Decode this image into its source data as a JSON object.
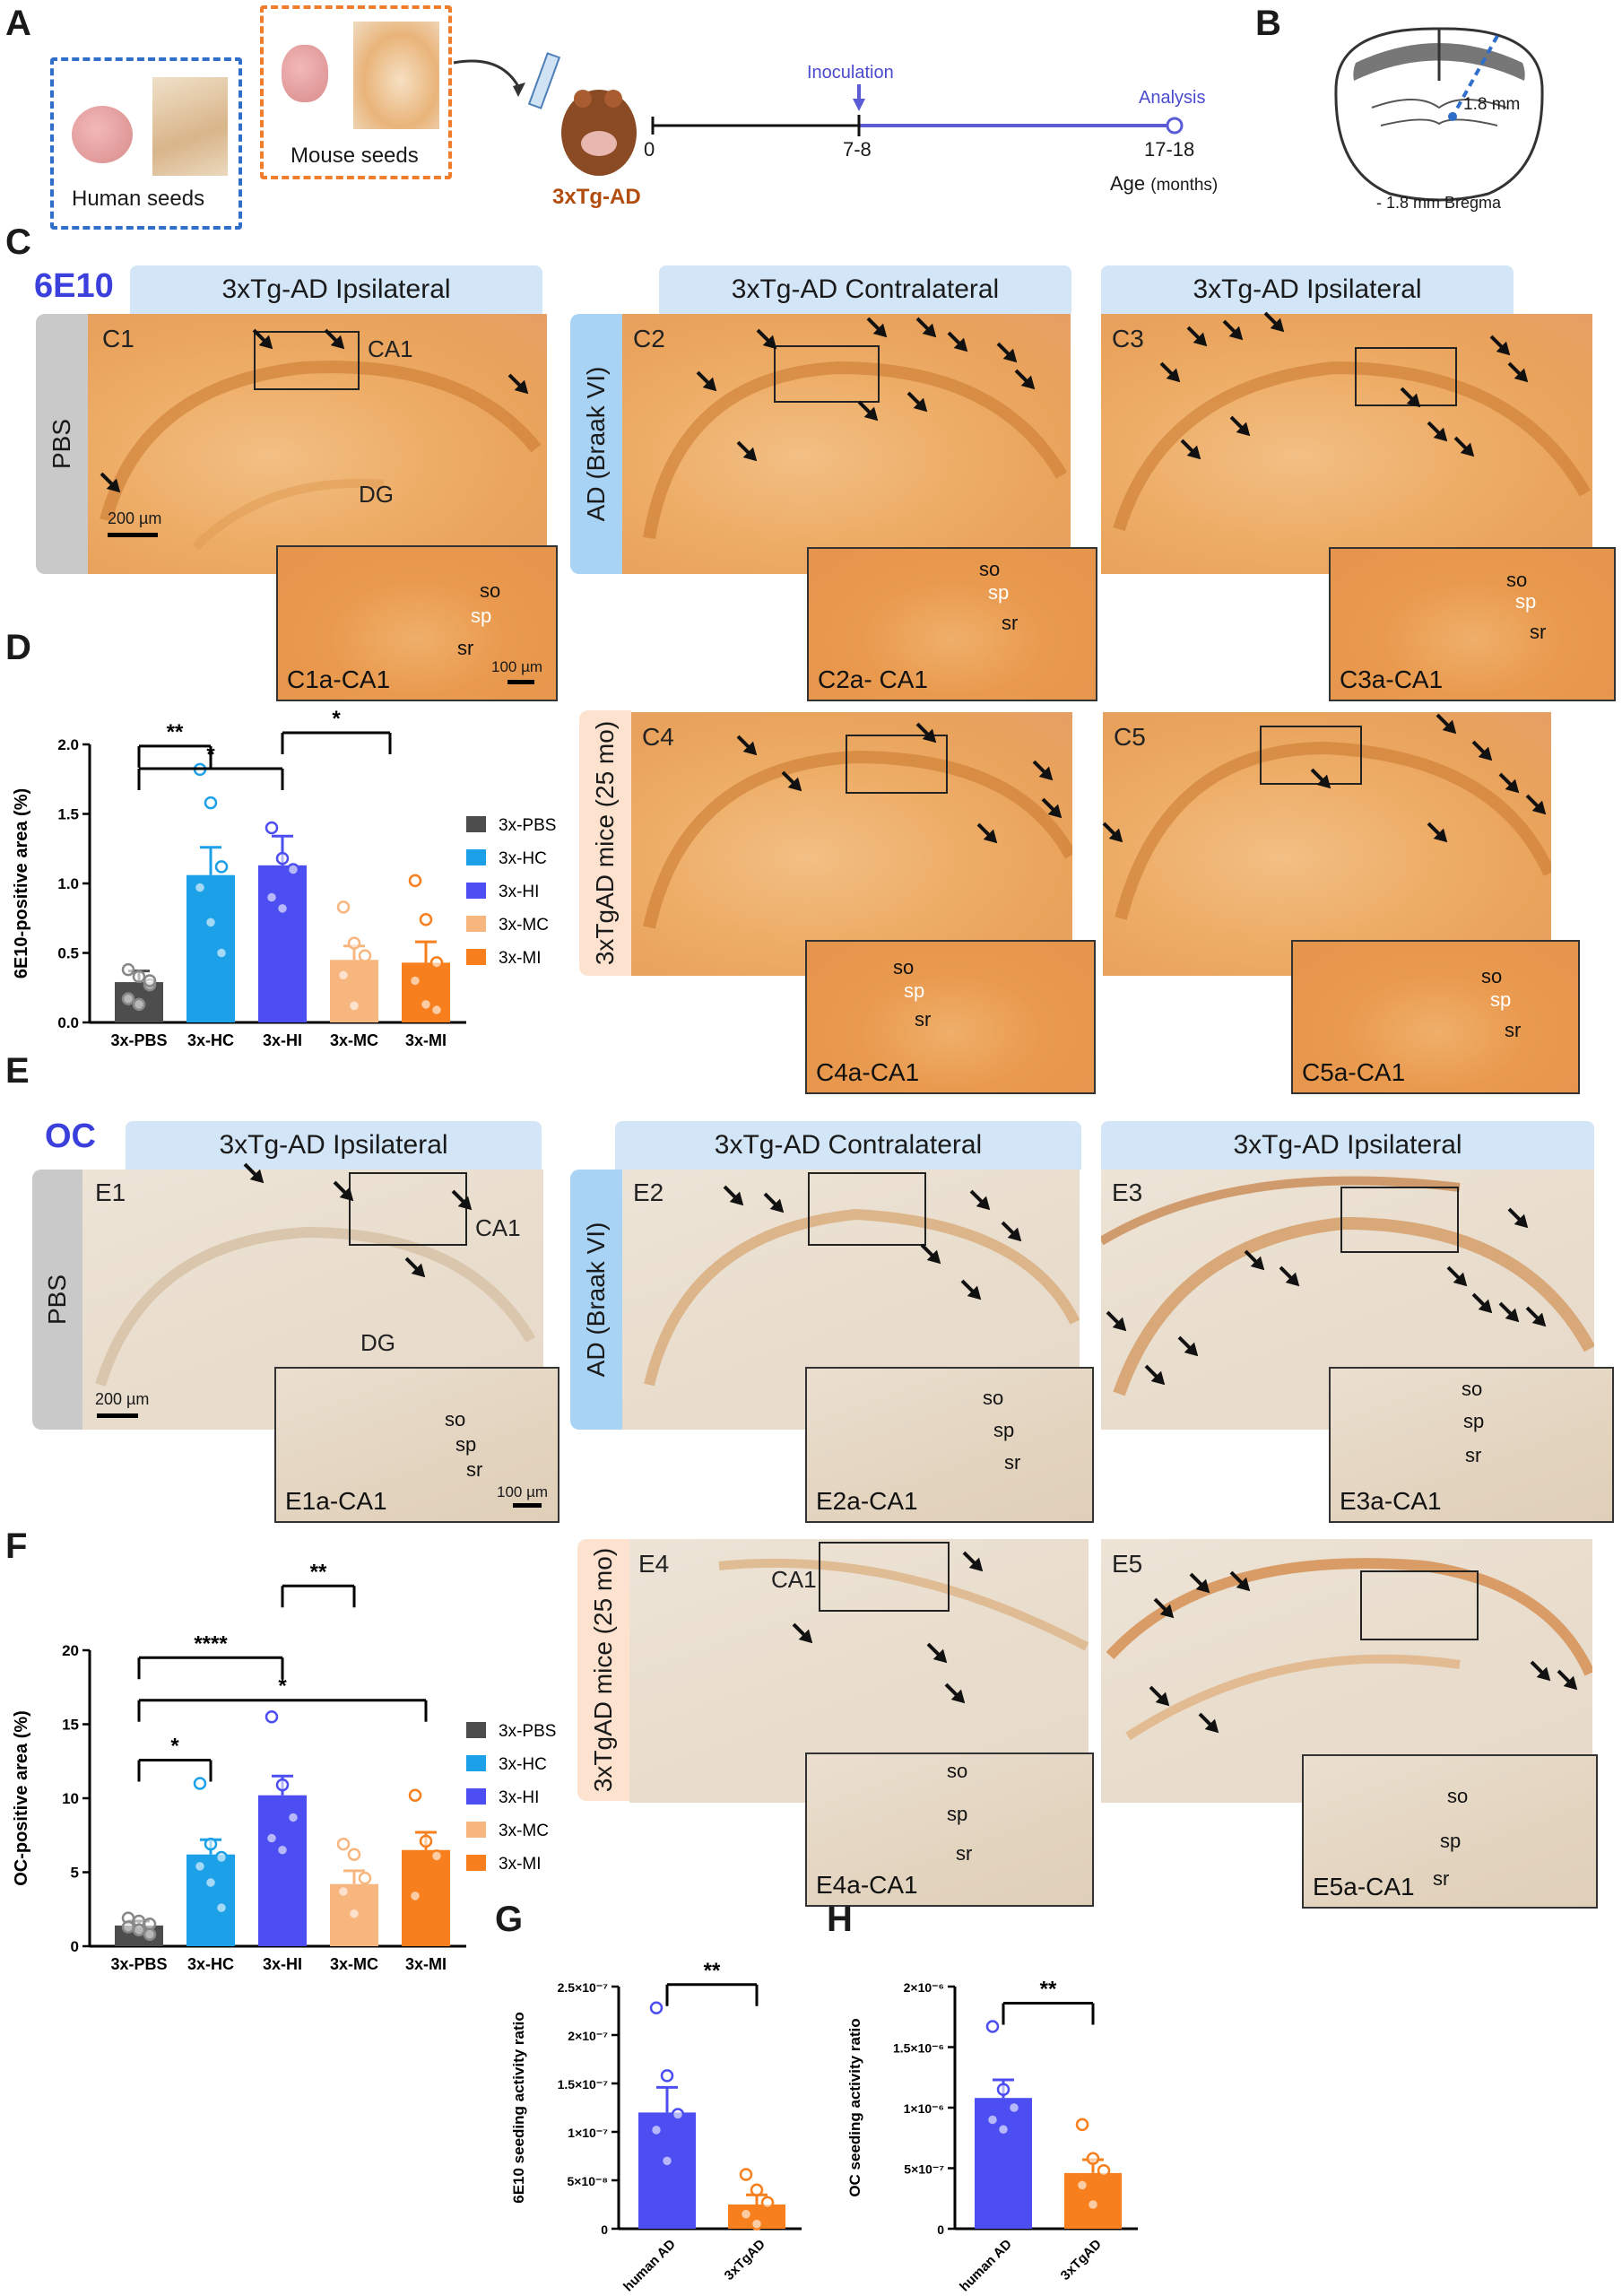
{
  "panels": {
    "A": "A",
    "B": "B",
    "C": "C",
    "D": "D",
    "E": "E",
    "F": "F",
    "G": "G",
    "H": "H"
  },
  "panelA": {
    "human_seeds": "Human seeds",
    "mouse_seeds": "Mouse seeds",
    "mouse_label": "3xTg-AD",
    "timeline": {
      "inoculation": "Inoculation",
      "analysis": "Analysis",
      "t0": "0",
      "t1": "7-8",
      "t2": "17-18",
      "age": "Age",
      "age_unit": "(months)"
    }
  },
  "panelB": {
    "depth": "1.8 mm",
    "bregma": "- 1.8 mm Bregma"
  },
  "panelC": {
    "stain": "6E10",
    "headers": [
      "3xTg-AD Ipsilateral",
      "3xTg-AD Contralateral",
      "3xTg-AD Ipsilateral"
    ],
    "side_labels": [
      "PBS",
      "AD (Braak VI)",
      "3xTgAD mice (25 mo)"
    ],
    "tags": [
      "C1",
      "C2",
      "C3",
      "C4",
      "C5"
    ],
    "insets": [
      "C1a-CA1",
      "C2a- CA1",
      "C3a-CA1",
      "C4a-CA1",
      "C5a-CA1"
    ],
    "regions": {
      "ca1": "CA1",
      "dg": "DG"
    },
    "scale_main": "200 µm",
    "scale_inset": "100 µm",
    "layers": {
      "so": "so",
      "sp": "sp",
      "sr": "sr"
    }
  },
  "panelE": {
    "stain": "OC",
    "headers": [
      "3xTg-AD Ipsilateral",
      "3xTg-AD Contralateral",
      "3xTg-AD Ipsilateral"
    ],
    "side_labels": [
      "PBS",
      "AD (Braak VI)",
      "3xTgAD mice (25 mo)"
    ],
    "tags": [
      "E1",
      "E2",
      "E3",
      "E4",
      "E5"
    ],
    "insets": [
      "E1a-CA1",
      "E2a-CA1",
      "E3a-CA1",
      "E4a-CA1",
      "E5a-CA1"
    ],
    "regions": {
      "ca1": "CA1",
      "dg": "DG"
    },
    "scale_main": "200 µm",
    "scale_inset": "100 µm",
    "layers": {
      "so": "so",
      "sp": "sp",
      "sr": "sr"
    }
  },
  "colors": {
    "PBS": "#4d4d4d",
    "HC": "#1ca0e8",
    "HI": "#4d4ef2",
    "MC": "#f8b67f",
    "MI": "#f77f1d",
    "header": "#d3e6f8",
    "stain": "#3b3fdb"
  },
  "chart_data": [
    {
      "panel": "D",
      "type": "bar",
      "ylabel": "6E10-positive area (%)",
      "ylim": [
        0,
        2.0
      ],
      "yticks": [
        "0.0",
        "0.5",
        "1.0",
        "1.5",
        "2.0"
      ],
      "categories": [
        "3x-PBS",
        "3x-HC",
        "3x-HI",
        "3x-MC",
        "3x-MI"
      ],
      "values": [
        0.29,
        1.06,
        1.13,
        0.45,
        0.43
      ],
      "errors": [
        0.08,
        0.2,
        0.21,
        0.1,
        0.15
      ],
      "points": [
        [
          0.38,
          0.33,
          0.27,
          0.17,
          0.13,
          0.3
        ],
        [
          1.82,
          1.58,
          1.12,
          0.97,
          0.72,
          0.5
        ],
        [
          1.4,
          1.18,
          1.1,
          0.9,
          0.82
        ],
        [
          0.83,
          0.57,
          0.48,
          0.34,
          0.12
        ],
        [
          1.02,
          0.74,
          0.43,
          0.3,
          0.13,
          0.09
        ]
      ],
      "legend": [
        "3x-PBS",
        "3x-HC",
        "3x-HI",
        "3x-MC",
        "3x-MI"
      ],
      "significance": [
        {
          "from": 0,
          "to": 1,
          "label": "**"
        },
        {
          "from": 0,
          "to": 2,
          "label": "*"
        },
        {
          "from": 2,
          "to": [
            3,
            4
          ],
          "label": "*"
        }
      ]
    },
    {
      "panel": "F",
      "type": "bar",
      "ylabel": "OC-positive area (%)",
      "ylim": [
        0,
        20
      ],
      "yticks": [
        "0",
        "5",
        "10",
        "15",
        "20"
      ],
      "categories": [
        "3x-PBS",
        "3x-HC",
        "3x-HI",
        "3x-MC",
        "3x-MI"
      ],
      "values": [
        1.4,
        6.2,
        10.2,
        4.2,
        6.5
      ],
      "errors": [
        0.3,
        1.0,
        1.3,
        0.9,
        1.2
      ],
      "points": [
        [
          1.9,
          1.7,
          1.5,
          1.3,
          1.1,
          0.8
        ],
        [
          11.0,
          6.9,
          6.0,
          5.4,
          4.3,
          2.6
        ],
        [
          15.5,
          10.9,
          8.7,
          7.3,
          6.5
        ],
        [
          6.9,
          6.2,
          4.6,
          3.7,
          2.2
        ],
        [
          10.2,
          7.1,
          6.1,
          3.4
        ]
      ],
      "legend": [
        "3x-PBS",
        "3x-HC",
        "3x-HI",
        "3x-MC",
        "3x-MI"
      ],
      "significance": [
        {
          "from": 0,
          "to": 1,
          "label": "*"
        },
        {
          "from": 0,
          "to": 2,
          "label": "****"
        },
        {
          "from": 0,
          "to": 4,
          "label": "*"
        },
        {
          "from": 2,
          "to": 3,
          "label": "**"
        }
      ]
    },
    {
      "panel": "G",
      "type": "bar",
      "ylabel": "6E10 seeding activity ratio",
      "ylim": [
        0,
        2.5e-07
      ],
      "yticks": [
        "0",
        "5×10⁻⁸",
        "1×10⁻⁷",
        "1.5×10⁻⁷",
        "2×10⁻⁷",
        "2.5×10⁻⁷"
      ],
      "categories": [
        "human AD",
        "3xTgAD"
      ],
      "values": [
        1.2e-07,
        2.5e-08
      ],
      "errors": [
        2.6e-08,
        1e-08
      ],
      "points": [
        [
          2.28e-07,
          1.58e-07,
          1.18e-07,
          1.02e-07,
          7e-08
        ],
        [
          5.6e-08,
          4e-08,
          2.7e-08,
          1.5e-08,
          5e-09
        ]
      ],
      "significance": [
        {
          "from": 0,
          "to": 1,
          "label": "**"
        }
      ]
    },
    {
      "panel": "H",
      "type": "bar",
      "ylabel": "OC seeding activity ratio",
      "ylim": [
        0,
        2e-06
      ],
      "yticks": [
        "0",
        "5×10⁻⁷",
        "1×10⁻⁶",
        "1.5×10⁻⁶",
        "2×10⁻⁶"
      ],
      "categories": [
        "human AD",
        "3xTgAD"
      ],
      "values": [
        1.08e-06,
        4.6e-07
      ],
      "errors": [
        1.5e-07,
        1.1e-07
      ],
      "points": [
        [
          1.67e-06,
          1.15e-06,
          1e-06,
          9e-07,
          8.2e-07
        ],
        [
          8.6e-07,
          5.8e-07,
          4.8e-07,
          3.6e-07,
          2e-07
        ]
      ],
      "significance": [
        {
          "from": 0,
          "to": 1,
          "label": "**"
        }
      ]
    }
  ]
}
